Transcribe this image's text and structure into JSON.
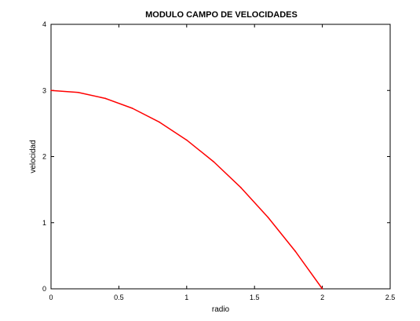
{
  "chart_data": {
    "type": "line",
    "title": "MODULO CAMPO DE VELOCIDADES",
    "xlabel": "radio",
    "ylabel": "velocidad",
    "xlim": [
      0,
      2.5
    ],
    "ylim": [
      0,
      4
    ],
    "xticks": [
      "0",
      "0.5",
      "1",
      "1.5",
      "2",
      "2.5"
    ],
    "yticks": [
      "0",
      "1",
      "2",
      "3",
      "4"
    ],
    "grid": false,
    "legend": "none",
    "series": [
      {
        "color": "#ff0000",
        "x": [
          0,
          0.2,
          0.4,
          0.6,
          0.8,
          1.0,
          1.2,
          1.4,
          1.6,
          1.8,
          2.0
        ],
        "y": [
          3.0,
          2.97,
          2.88,
          2.73,
          2.52,
          2.25,
          1.92,
          1.53,
          1.08,
          0.57,
          0.0
        ]
      }
    ]
  }
}
